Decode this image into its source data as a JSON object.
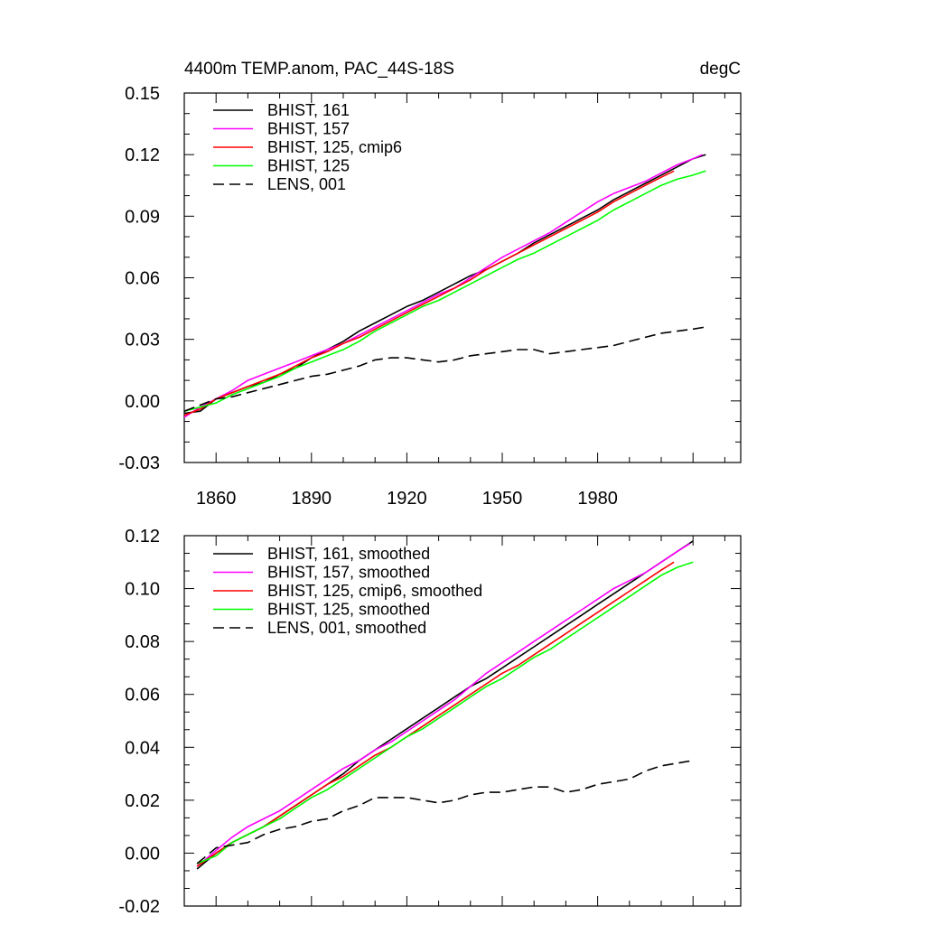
{
  "colors": {
    "black": "#000000",
    "magenta": "#ff00ff",
    "red": "#ff0000",
    "green": "#00ff00"
  },
  "chart_data": [
    {
      "type": "line",
      "title": "4400m TEMP.anom, PAC_44S-18S",
      "units": "degC",
      "xlim": [
        1850,
        2025
      ],
      "ylim": [
        -0.03,
        0.15
      ],
      "xticks": [
        1860,
        1890,
        1920,
        1950,
        1980
      ],
      "xtick_labels": [
        "1860",
        "1890",
        "1920",
        "1950",
        "1980"
      ],
      "yticks": [
        -0.03,
        0,
        0.03,
        0.06,
        0.09,
        0.12,
        0.15
      ],
      "ytick_labels": [
        "-0.03",
        "0.00",
        "0.03",
        "0.06",
        "0.09",
        "0.12",
        "0.15"
      ],
      "legend_position": "top-left",
      "series": [
        {
          "name": "BHIST, 161",
          "color": "#000000",
          "dash": "solid",
          "x": [
            1850,
            1855,
            1860,
            1865,
            1870,
            1875,
            1880,
            1885,
            1890,
            1895,
            1900,
            1905,
            1910,
            1915,
            1920,
            1925,
            1930,
            1935,
            1940,
            1945,
            1950,
            1955,
            1960,
            1965,
            1970,
            1975,
            1980,
            1985,
            1990,
            1995,
            2000,
            2005,
            2010,
            2014
          ],
          "y": [
            -0.006,
            -0.005,
            0.001,
            0.004,
            0.007,
            0.009,
            0.013,
            0.016,
            0.021,
            0.025,
            0.029,
            0.034,
            0.038,
            0.042,
            0.046,
            0.049,
            0.053,
            0.057,
            0.061,
            0.064,
            0.068,
            0.072,
            0.077,
            0.081,
            0.085,
            0.089,
            0.093,
            0.098,
            0.102,
            0.106,
            0.11,
            0.114,
            0.118,
            0.12
          ]
        },
        {
          "name": "BHIST, 157",
          "color": "#ff00ff",
          "dash": "solid",
          "x": [
            1850,
            1855,
            1860,
            1865,
            1870,
            1875,
            1880,
            1885,
            1890,
            1895,
            1900,
            1905,
            1910,
            1915,
            1920,
            1925,
            1930,
            1935,
            1940,
            1945,
            1950,
            1955,
            1960,
            1965,
            1970,
            1975,
            1980,
            1985,
            1990,
            1995,
            2000,
            2005,
            2010,
            2013
          ],
          "y": [
            -0.008,
            -0.003,
            0.001,
            0.005,
            0.01,
            0.013,
            0.016,
            0.019,
            0.022,
            0.025,
            0.028,
            0.032,
            0.036,
            0.04,
            0.044,
            0.048,
            0.052,
            0.055,
            0.06,
            0.065,
            0.07,
            0.074,
            0.078,
            0.082,
            0.087,
            0.092,
            0.097,
            0.101,
            0.104,
            0.107,
            0.111,
            0.115,
            0.118,
            0.12
          ]
        },
        {
          "name": "BHIST, 125, cmip6",
          "color": "#ff0000",
          "dash": "solid",
          "x": [
            1850,
            1855,
            1860,
            1865,
            1870,
            1875,
            1880,
            1885,
            1890,
            1895,
            1900,
            1905,
            1910,
            1915,
            1920,
            1925,
            1930,
            1935,
            1940,
            1945,
            1950,
            1955,
            1960,
            1965,
            1970,
            1975,
            1980,
            1985,
            1990,
            1995,
            2000,
            2004
          ],
          "y": [
            -0.007,
            -0.004,
            0.001,
            0.004,
            0.007,
            0.01,
            0.013,
            0.017,
            0.021,
            0.024,
            0.028,
            0.031,
            0.035,
            0.039,
            0.043,
            0.047,
            0.051,
            0.055,
            0.059,
            0.064,
            0.068,
            0.072,
            0.076,
            0.08,
            0.084,
            0.088,
            0.092,
            0.097,
            0.101,
            0.105,
            0.109,
            0.112
          ]
        },
        {
          "name": "BHIST, 125",
          "color": "#00ff00",
          "dash": "solid",
          "x": [
            1850,
            1855,
            1860,
            1865,
            1870,
            1875,
            1880,
            1885,
            1890,
            1895,
            1900,
            1905,
            1910,
            1915,
            1920,
            1925,
            1930,
            1935,
            1940,
            1945,
            1950,
            1955,
            1960,
            1965,
            1970,
            1975,
            1980,
            1985,
            1990,
            1995,
            2000,
            2005,
            2010,
            2014
          ],
          "y": [
            -0.005,
            -0.003,
            -0.001,
            0.003,
            0.006,
            0.009,
            0.012,
            0.016,
            0.019,
            0.022,
            0.025,
            0.029,
            0.034,
            0.038,
            0.042,
            0.046,
            0.049,
            0.053,
            0.057,
            0.061,
            0.065,
            0.069,
            0.072,
            0.076,
            0.08,
            0.084,
            0.088,
            0.093,
            0.097,
            0.101,
            0.105,
            0.108,
            0.11,
            0.112
          ]
        },
        {
          "name": "LENS, 001",
          "color": "#000000",
          "dash": "dashed",
          "x": [
            1850,
            1855,
            1860,
            1865,
            1870,
            1875,
            1880,
            1885,
            1890,
            1895,
            1900,
            1905,
            1910,
            1915,
            1920,
            1925,
            1930,
            1935,
            1940,
            1945,
            1950,
            1955,
            1960,
            1965,
            1970,
            1975,
            1980,
            1985,
            1990,
            1995,
            2000,
            2005,
            2010,
            2014
          ],
          "y": [
            -0.005,
            -0.002,
            0.001,
            0.002,
            0.004,
            0.006,
            0.008,
            0.01,
            0.012,
            0.013,
            0.015,
            0.017,
            0.02,
            0.021,
            0.021,
            0.02,
            0.019,
            0.02,
            0.022,
            0.023,
            0.024,
            0.025,
            0.025,
            0.023,
            0.024,
            0.025,
            0.026,
            0.027,
            0.029,
            0.031,
            0.033,
            0.034,
            0.035,
            0.036
          ]
        }
      ]
    },
    {
      "type": "line",
      "xlim": [
        1850,
        2025
      ],
      "ylim": [
        -0.02,
        0.12
      ],
      "xticks": [
        1860,
        1890,
        1920,
        1950,
        1980
      ],
      "yticks": [
        -0.02,
        0,
        0.02,
        0.04,
        0.06,
        0.08,
        0.1,
        0.12
      ],
      "ytick_labels": [
        "-0.02",
        "0.00",
        "0.02",
        "0.04",
        "0.06",
        "0.08",
        "0.10",
        "0.12"
      ],
      "legend_position": "top-left",
      "series": [
        {
          "name": "BHIST, 161, smoothed",
          "color": "#000000",
          "dash": "solid",
          "x": [
            1854,
            1860,
            1865,
            1870,
            1875,
            1880,
            1885,
            1890,
            1895,
            1900,
            1905,
            1910,
            1915,
            1920,
            1925,
            1930,
            1935,
            1940,
            1945,
            1950,
            1955,
            1960,
            1965,
            1970,
            1975,
            1980,
            1985,
            1990,
            1995,
            2000,
            2005,
            2010
          ],
          "y": [
            -0.006,
            0.0,
            0.004,
            0.007,
            0.01,
            0.014,
            0.018,
            0.022,
            0.026,
            0.03,
            0.035,
            0.039,
            0.043,
            0.047,
            0.051,
            0.055,
            0.059,
            0.063,
            0.066,
            0.07,
            0.074,
            0.078,
            0.082,
            0.086,
            0.09,
            0.094,
            0.098,
            0.102,
            0.106,
            0.11,
            0.114,
            0.118
          ]
        },
        {
          "name": "BHIST, 157, smoothed",
          "color": "#ff00ff",
          "dash": "solid",
          "x": [
            1854,
            1860,
            1865,
            1870,
            1875,
            1880,
            1885,
            1890,
            1895,
            1900,
            1905,
            1910,
            1915,
            1920,
            1925,
            1930,
            1935,
            1940,
            1945,
            1950,
            1955,
            1960,
            1965,
            1970,
            1975,
            1980,
            1985,
            1990,
            1995,
            2000,
            2005,
            2009
          ],
          "y": [
            -0.005,
            0.001,
            0.006,
            0.01,
            0.013,
            0.016,
            0.02,
            0.024,
            0.028,
            0.032,
            0.035,
            0.039,
            0.042,
            0.046,
            0.05,
            0.054,
            0.058,
            0.063,
            0.068,
            0.072,
            0.076,
            0.08,
            0.084,
            0.088,
            0.092,
            0.096,
            0.1,
            0.103,
            0.106,
            0.11,
            0.114,
            0.117
          ]
        },
        {
          "name": "BHIST, 125, cmip6, smoothed",
          "color": "#ff0000",
          "dash": "solid",
          "x": [
            1854,
            1860,
            1865,
            1870,
            1875,
            1880,
            1885,
            1890,
            1895,
            1900,
            1905,
            1910,
            1915,
            1920,
            1925,
            1930,
            1935,
            1940,
            1945,
            1950,
            1955,
            1960,
            1965,
            1970,
            1975,
            1980,
            1985,
            1990,
            1995,
            2000,
            2004
          ],
          "y": [
            -0.005,
            0.0,
            0.004,
            0.007,
            0.01,
            0.014,
            0.018,
            0.022,
            0.026,
            0.029,
            0.033,
            0.037,
            0.04,
            0.044,
            0.048,
            0.052,
            0.056,
            0.06,
            0.064,
            0.068,
            0.071,
            0.075,
            0.079,
            0.083,
            0.087,
            0.091,
            0.095,
            0.099,
            0.103,
            0.107,
            0.11
          ]
        },
        {
          "name": "BHIST, 125, smoothed",
          "color": "#00ff00",
          "dash": "solid",
          "x": [
            1854,
            1860,
            1865,
            1870,
            1875,
            1880,
            1885,
            1890,
            1895,
            1900,
            1905,
            1910,
            1915,
            1920,
            1925,
            1930,
            1935,
            1940,
            1945,
            1950,
            1955,
            1960,
            1965,
            1970,
            1975,
            1980,
            1985,
            1990,
            1995,
            2000,
            2005,
            2010
          ],
          "y": [
            -0.004,
            -0.001,
            0.004,
            0.007,
            0.01,
            0.013,
            0.017,
            0.021,
            0.024,
            0.028,
            0.032,
            0.036,
            0.04,
            0.044,
            0.047,
            0.051,
            0.055,
            0.059,
            0.063,
            0.066,
            0.07,
            0.074,
            0.077,
            0.081,
            0.085,
            0.089,
            0.093,
            0.097,
            0.101,
            0.105,
            0.108,
            0.11
          ]
        },
        {
          "name": "LENS, 001, smoothed",
          "color": "#000000",
          "dash": "dashed",
          "x": [
            1854,
            1860,
            1865,
            1870,
            1875,
            1880,
            1885,
            1890,
            1895,
            1900,
            1905,
            1910,
            1915,
            1920,
            1925,
            1930,
            1935,
            1940,
            1945,
            1950,
            1955,
            1960,
            1965,
            1970,
            1975,
            1980,
            1985,
            1990,
            1995,
            2000,
            2005,
            2010
          ],
          "y": [
            -0.004,
            0.002,
            0.003,
            0.004,
            0.007,
            0.009,
            0.01,
            0.012,
            0.013,
            0.016,
            0.018,
            0.021,
            0.021,
            0.021,
            0.02,
            0.019,
            0.02,
            0.022,
            0.023,
            0.023,
            0.024,
            0.025,
            0.025,
            0.023,
            0.024,
            0.026,
            0.027,
            0.028,
            0.031,
            0.033,
            0.034,
            0.035
          ]
        }
      ]
    }
  ]
}
